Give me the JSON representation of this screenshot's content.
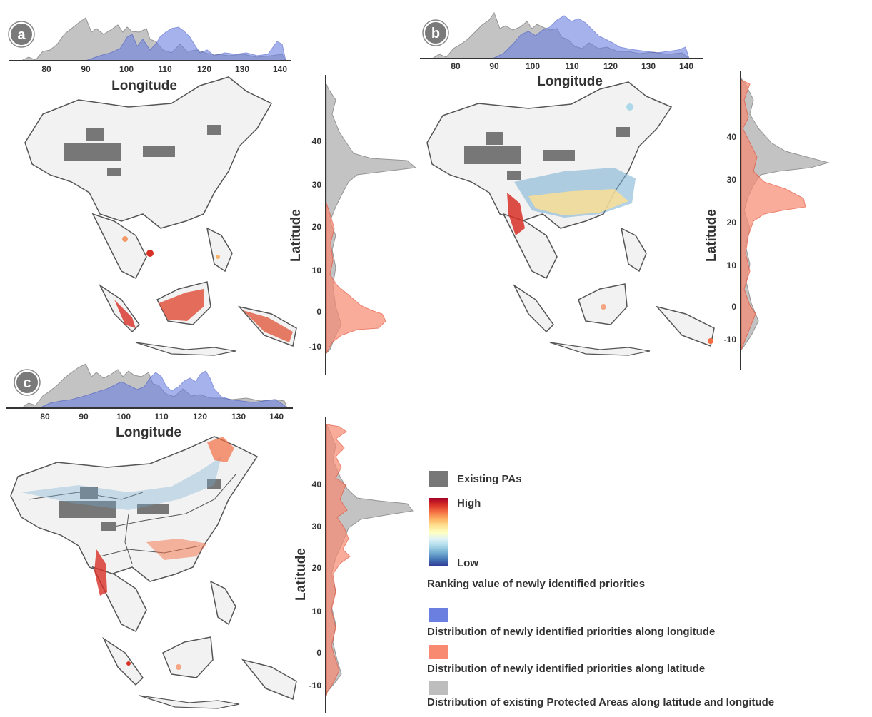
{
  "panels": [
    {
      "id": "a",
      "badge": "a",
      "xlabel": "Longitude",
      "ylabel": "Latitude",
      "lon_ticks": [
        "80",
        "90",
        "100",
        "110",
        "120",
        "130",
        "140"
      ],
      "lat_ticks": [
        "40",
        "30",
        "20",
        "10",
        "0",
        "-10"
      ]
    },
    {
      "id": "b",
      "badge": "b",
      "xlabel": "Longitude",
      "ylabel": "Latitude",
      "lon_ticks": [
        "80",
        "90",
        "100",
        "110",
        "120",
        "130",
        "140"
      ],
      "lat_ticks": [
        "40",
        "30",
        "20",
        "10",
        "0",
        "-10"
      ]
    },
    {
      "id": "c",
      "badge": "c",
      "xlabel": "Longitude",
      "ylabel": "Latitude",
      "lon_ticks": [
        "80",
        "90",
        "100",
        "110",
        "120",
        "130",
        "140"
      ],
      "lat_ticks": [
        "40",
        "30",
        "20",
        "10",
        "0",
        "-10"
      ]
    }
  ],
  "legend": {
    "existing_pas": "Existing PAs",
    "high": "High",
    "low": "Low",
    "ranking_title": "Ranking value of newly identified priorities",
    "lon_dist": "Distribution of newly identified priorities along longitude",
    "lat_dist": "Distribution of newly identified priorities along latitude",
    "pa_dist": "Distribution of existing Protected Areas along latitude and longitude"
  },
  "colors": {
    "existing_pa": "#777777",
    "longitude_priority": "#6b7fe0",
    "latitude_priority": "#f88a72",
    "existing_dist": "#bdbdbd",
    "land": "#f2f2f2",
    "coast": "#555555",
    "ranking_high": "#b2182b",
    "ranking_low": "#21409a"
  }
}
